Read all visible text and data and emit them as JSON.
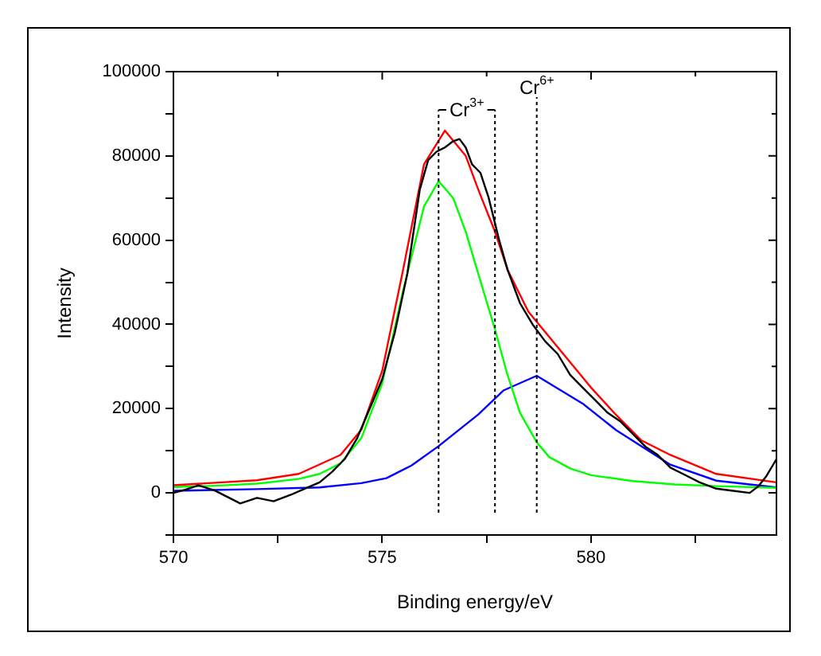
{
  "chart_data": {
    "type": "line",
    "xlabel": "Binding energy/eV",
    "ylabel": "Intensity",
    "xlim": [
      570,
      584.44
    ],
    "xticks": [
      570,
      {
        "value": 572.5,
        "label": null
      },
      575,
      {
        "value": 577.5,
        "label": null
      },
      580,
      {
        "value": 582.5,
        "label": null
      }
    ],
    "ylim": [
      -10000,
      100000
    ],
    "yticks": [
      {
        "value": -10000,
        "label": null
      },
      0,
      {
        "value": 10000,
        "label": null
      },
      20000,
      {
        "value": 30000,
        "label": null
      },
      40000,
      {
        "value": 50000,
        "label": null
      },
      60000,
      {
        "value": 70000,
        "label": null
      },
      80000,
      {
        "value": 90000,
        "label": null
      },
      100000
    ],
    "grid": false,
    "legend": false,
    "marker": "none",
    "line_style": "solid",
    "series": [
      {
        "color": "#000000",
        "x": [
          570,
          570.3,
          570.6,
          571,
          571.3,
          571.6,
          572,
          572.4,
          572.8,
          573.1,
          573.5,
          573.8,
          574.1,
          574.4,
          574.7,
          575,
          575.3,
          575.6,
          575.9,
          576.1,
          576.3,
          576.5,
          576.7,
          576.85,
          577,
          577.15,
          577.35,
          577.55,
          577.8,
          578,
          578.3,
          578.6,
          578.9,
          579.2,
          579.5,
          579.8,
          580.1,
          580.4,
          580.7,
          581,
          581.3,
          581.6,
          581.9,
          582.2,
          582.6,
          583,
          583.4,
          583.8,
          584,
          584.2,
          584.44
        ],
        "values": [
          0,
          800,
          1800,
          500,
          -1000,
          -2500,
          -1200,
          -2000,
          -500,
          800,
          2500,
          5000,
          8000,
          13000,
          20000,
          27000,
          38000,
          52000,
          72000,
          79000,
          81000,
          82000,
          83500,
          84000,
          82000,
          78000,
          76000,
          70000,
          60000,
          53000,
          45000,
          40000,
          36000,
          33000,
          28000,
          25000,
          22000,
          19000,
          17000,
          14000,
          11000,
          9000,
          6000,
          4500,
          2500,
          1000,
          500,
          0,
          1500,
          4000,
          8000
        ]
      },
      {
        "color": "#ff0000",
        "x": [
          570,
          572,
          573,
          574,
          574.5,
          575,
          575.5,
          576,
          576.5,
          577,
          577.3,
          577.7,
          578,
          578.5,
          579,
          579.5,
          580,
          580.6,
          581.2,
          581.9,
          583,
          584.44
        ],
        "values": [
          1800,
          3000,
          4500,
          9000,
          15000,
          29000,
          53000,
          78000,
          86000,
          80000,
          72000,
          62000,
          53000,
          43000,
          37000,
          31000,
          25000,
          18500,
          12500,
          9000,
          4500,
          2500
        ]
      },
      {
        "color": "#00ff00",
        "x": [
          570,
          571,
          572,
          573,
          573.5,
          574,
          574.5,
          575,
          575.5,
          576,
          576.35,
          576.7,
          577,
          577.3,
          577.7,
          578,
          578.3,
          578.7,
          579,
          579.5,
          580,
          581,
          582,
          583,
          584.44
        ],
        "values": [
          1400,
          1700,
          2200,
          3300,
          4500,
          7000,
          13000,
          26000,
          48000,
          68000,
          74000,
          70000,
          62000,
          52000,
          38800,
          28000,
          19000,
          12000,
          8500,
          5800,
          4200,
          2800,
          2000,
          1600,
          1200
        ]
      },
      {
        "color": "#0000ff",
        "x": [
          570,
          572,
          573.5,
          574.5,
          575.1,
          575.7,
          576.35,
          577.3,
          577.9,
          578.7,
          579.8,
          580.6,
          581.9,
          583,
          584.44
        ],
        "values": [
          500,
          900,
          1300,
          2300,
          3500,
          6500,
          11100,
          18600,
          24300,
          27800,
          21200,
          14900,
          6700,
          2900,
          1300
        ]
      }
    ],
    "ref_lines": [
      {
        "axis": "x",
        "value": 576.35,
        "label": "Cr$^{3+}$",
        "color": "#000000",
        "line_style": "dotted"
      },
      {
        "axis": "x",
        "value": 577.7,
        "color": "#000000",
        "line_style": "dotted"
      },
      {
        "axis": "x",
        "value": 578.7,
        "label": "Cr$^{6+}$",
        "color": "#000000",
        "line_style": "dotted"
      }
    ]
  }
}
